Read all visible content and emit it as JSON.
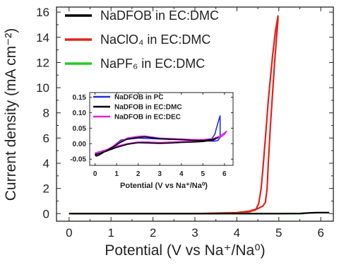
{
  "chart_data": [
    {
      "type": "line",
      "xlabel": "Potential (V vs Na⁺/Na⁰)",
      "ylabel": "Current density (mA cm⁻²)",
      "xlim": [
        -0.3,
        6.3
      ],
      "ylim": [
        -0.6,
        16.4
      ],
      "xticks": [
        "0",
        "1",
        "2",
        "3",
        "4",
        "5",
        "6"
      ],
      "yticks": [
        "0",
        "2",
        "4",
        "6",
        "8",
        "10",
        "12",
        "14",
        "16"
      ],
      "legend": "top-left",
      "series": [
        {
          "name": "NaDFOB in EC:DMC",
          "color": "#000000",
          "x": [
            0,
            1,
            2,
            3,
            4,
            5,
            5.5,
            5.7,
            5.9,
            6.2
          ],
          "y": [
            0,
            0,
            0,
            0,
            0,
            0,
            0.01,
            0.05,
            0.08,
            0.08
          ]
        },
        {
          "name": "NaClO₄ in EC:DMC",
          "color": "#e2231a",
          "x": [
            0,
            3,
            3.5,
            4,
            4.3,
            4.45,
            4.52,
            4.58,
            4.62,
            4.68,
            4.75,
            4.85,
            4.92,
            4.98,
            4.98,
            4.9,
            4.85,
            4.8,
            4.75,
            4.72,
            4.68,
            4.62,
            4.5,
            4.3,
            4,
            3
          ],
          "y": [
            0,
            0,
            0.02,
            0.05,
            0.15,
            0.3,
            0.8,
            2.0,
            3.5,
            6.0,
            9.0,
            12.5,
            14.5,
            15.7,
            15.4,
            12.0,
            9.5,
            7.0,
            4.0,
            2.0,
            0.9,
            0.6,
            0.4,
            0.2,
            0.08,
            0
          ]
        },
        {
          "name": "NaPF₆ in EC:DMC",
          "color": "#22cc22",
          "x": [
            0,
            1,
            2,
            3,
            4,
            5,
            5.6
          ],
          "y": [
            0,
            0,
            0,
            0,
            0,
            0,
            0
          ]
        }
      ]
    },
    {
      "type": "line",
      "xlabel": "Potential (V vs Na⁺/Na⁰)",
      "xlim": [
        -0.25,
        6.4
      ],
      "ylim": [
        -0.07,
        0.165
      ],
      "xticks": [
        "0",
        "1",
        "2",
        "3",
        "4",
        "5",
        "6"
      ],
      "yticks": [
        "-0.05",
        "0.00",
        "0.05",
        "0.10",
        "0.15"
      ],
      "legend": "top-left",
      "series": [
        {
          "name": "NaDFOB in PC",
          "color": "#1f2fe0",
          "x": [
            0,
            0.5,
            1,
            1.5,
            2,
            2.5,
            3,
            3.5,
            4,
            4.5,
            5,
            5.4,
            5.55,
            5.65,
            5.75,
            5.8,
            5.8,
            5.7,
            5.5,
            5,
            4.5,
            4,
            3,
            2,
            1.2,
            0.8,
            0.4,
            0.15,
            0.05,
            0
          ],
          "y": [
            -0.03,
            -0.02,
            -0.01,
            0,
            0.005,
            0.005,
            0.002,
            0.003,
            0.005,
            0.006,
            0.008,
            0.015,
            0.03,
            0.055,
            0.08,
            0.09,
            0.02,
            0.01,
            0.008,
            0.01,
            0.012,
            0.013,
            0.015,
            0.018,
            0.012,
            -0.01,
            -0.025,
            -0.035,
            -0.04,
            -0.035
          ]
        },
        {
          "name": "NaDFOB in EC:DMC",
          "color": "#000000",
          "x": [
            0,
            0.5,
            1,
            1.5,
            2,
            2.5,
            3,
            3.5,
            4,
            4.5,
            5,
            5.5,
            5.7,
            5.5,
            5,
            4.5,
            4,
            3,
            2.3,
            2,
            1.5,
            1.2,
            0.8,
            0.4,
            0.15,
            0.05,
            0
          ],
          "y": [
            -0.035,
            -0.025,
            -0.012,
            -0.002,
            0.003,
            0.002,
            0.001,
            0.002,
            0.004,
            0.005,
            0.007,
            0.012,
            0.02,
            0.014,
            0.01,
            0.011,
            0.013,
            0.016,
            0.022,
            0.02,
            0.015,
            0.005,
            -0.012,
            -0.028,
            -0.038,
            -0.04,
            -0.035
          ]
        },
        {
          "name": "NaDFOB in EC:DEC",
          "color": "#e020e0",
          "x": [
            0,
            0.5,
            1,
            1.5,
            2,
            2.5,
            3,
            3.5,
            4,
            4.5,
            5,
            5.5,
            5.8,
            6.0,
            6.1,
            6.0,
            5.8,
            5.5,
            5,
            4.5,
            4,
            3,
            2.3,
            2,
            1.5,
            1.2,
            0.8,
            0.4,
            0.15,
            0.05,
            0
          ],
          "y": [
            -0.03,
            -0.02,
            -0.008,
            0,
            0.005,
            0.005,
            0.004,
            0.005,
            0.007,
            0.008,
            0.01,
            0.015,
            0.02,
            0.03,
            0.04,
            0.035,
            0.025,
            0.017,
            0.013,
            0.013,
            0.015,
            0.018,
            0.025,
            0.024,
            0.018,
            0.008,
            -0.01,
            -0.025,
            -0.035,
            -0.037,
            -0.03
          ]
        }
      ]
    }
  ]
}
